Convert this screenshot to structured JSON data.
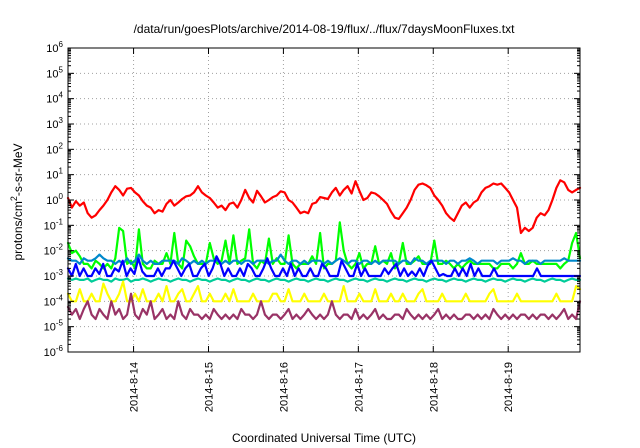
{
  "chart_data": {
    "type": "line",
    "title": "/data/run/goesPlots/archive/2014-08-19/flux/../flux/7daysMoonFluxes.txt",
    "xlabel": "Coordinated Universal Time (UTC)",
    "ylabel": "protons/cm^2-s-sr-MeV",
    "y_scale": "log",
    "ylim_exp": [
      -6,
      6
    ],
    "x_unit": "days",
    "xlim_days": [
      "2014-08-13 03:00",
      "2014-08-19 23:00"
    ],
    "x_ticks": [
      "2014-8-14",
      "2014-8-15",
      "2014-8-16",
      "2014-8-17",
      "2014-8-18",
      "2014-8-19"
    ],
    "grid": true,
    "series": [
      {
        "color": "#ff0000",
        "values": [
          1.2,
          0.5,
          0.9,
          0.6,
          0.8,
          0.3,
          0.2,
          0.25,
          0.4,
          0.6,
          1.0,
          2.0,
          3.5,
          2.5,
          1.5,
          2.8,
          3.0,
          2.0,
          1.5,
          0.9,
          0.6,
          0.5,
          0.3,
          0.4,
          0.35,
          0.7,
          1.0,
          0.6,
          0.8,
          1.1,
          1.4,
          1.5,
          2.0,
          3.5,
          2.0,
          1.5,
          1.2,
          0.8,
          0.5,
          0.6,
          0.4,
          0.7,
          0.8,
          0.5,
          1.0,
          2.5,
          1.2,
          0.8,
          2.3,
          1.4,
          0.8,
          1.0,
          1.3,
          1.5,
          2.2,
          2.0,
          1.0,
          0.8,
          0.5,
          0.3,
          0.35,
          0.3,
          0.7,
          0.8,
          1.3,
          1.2,
          1.1,
          2.0,
          3.0,
          1.5,
          2.5,
          3.5,
          1.8,
          5.5,
          2.3,
          1.0,
          1.2,
          2.0,
          1.8,
          1.4,
          1.0,
          0.7,
          0.35,
          0.2,
          0.18,
          0.3,
          0.5,
          1.0,
          2.5,
          4.0,
          4.5,
          3.8,
          3.0,
          1.5,
          1.0,
          0.6,
          0.3,
          0.2,
          0.15,
          0.3,
          0.6,
          0.8,
          0.5,
          0.8,
          1.0,
          2.0,
          3.0,
          3.5,
          4.5,
          4.0,
          4.5,
          3.0,
          2.0,
          1.0,
          0.5,
          0.05,
          0.08,
          0.06,
          0.08,
          0.2,
          0.3,
          0.25,
          0.4,
          1.0,
          3.0,
          6.0,
          5.0,
          2.5,
          2.0,
          2.5,
          3.0
        ]
      },
      {
        "color": "#00ff00",
        "values": [
          0.02,
          0.008,
          0.01,
          0.006,
          0.003,
          0.003,
          0.002,
          0.004,
          0.003,
          0.002,
          0.003,
          0.002,
          0.005,
          0.08,
          0.06,
          0.003,
          0.004,
          0.002,
          0.07,
          0.003,
          0.002,
          0.002,
          0.004,
          0.003,
          0.003,
          0.008,
          0.003,
          0.05,
          0.003,
          0.002,
          0.025,
          0.015,
          0.006,
          0.003,
          0.003,
          0.003,
          0.02,
          0.005,
          0.003,
          0.004,
          0.025,
          0.003,
          0.04,
          0.003,
          0.004,
          0.005,
          0.07,
          0.003,
          0.002,
          0.004,
          0.003,
          0.03,
          0.003,
          0.005,
          0.003,
          0.003,
          0.04,
          0.003,
          0.002,
          0.003,
          0.003,
          0.003,
          0.006,
          0.003,
          0.05,
          0.002,
          0.003,
          0.003,
          0.004,
          0.13,
          0.01,
          0.003,
          0.002,
          0.003,
          0.008,
          0.002,
          0.003,
          0.003,
          0.015,
          0.003,
          0.004,
          0.003,
          0.008,
          0.002,
          0.003,
          0.02,
          0.003,
          0.003,
          0.004,
          0.006,
          0.003,
          0.003,
          0.003,
          0.025,
          0.003,
          0.003,
          0.004,
          0.003,
          0.002,
          0.003,
          0.002,
          0.003,
          0.004,
          0.003,
          0.003,
          0.003,
          0.003,
          0.003,
          0.002,
          0.002,
          0.003,
          0.003,
          0.003,
          0.002,
          0.003,
          0.008,
          0.003,
          0.003,
          0.004,
          0.003,
          0.003,
          0.003,
          0.003,
          0.003,
          0.003,
          0.002,
          0.003,
          0.004,
          0.02,
          0.05,
          0.005
        ]
      },
      {
        "color": "#0088cc",
        "values": [
          0.005,
          0.004,
          0.004,
          0.003,
          0.005,
          0.004,
          0.004,
          0.005,
          0.007,
          0.005,
          0.004,
          0.004,
          0.003,
          0.004,
          0.003,
          0.005,
          0.003,
          0.004,
          0.007,
          0.004,
          0.003,
          0.004,
          0.003,
          0.003,
          0.004,
          0.004,
          0.004,
          0.004,
          0.003,
          0.005,
          0.004,
          0.003,
          0.004,
          0.003,
          0.004,
          0.003,
          0.004,
          0.004,
          0.004,
          0.003,
          0.004,
          0.003,
          0.004,
          0.004,
          0.003,
          0.004,
          0.004,
          0.003,
          0.004,
          0.004,
          0.004,
          0.003,
          0.004,
          0.004,
          0.007,
          0.004,
          0.003,
          0.004,
          0.004,
          0.003,
          0.004,
          0.003,
          0.004,
          0.004,
          0.004,
          0.003,
          0.004,
          0.003,
          0.004,
          0.005,
          0.004,
          0.003,
          0.004,
          0.004,
          0.003,
          0.004,
          0.004,
          0.003,
          0.004,
          0.003,
          0.004,
          0.004,
          0.004,
          0.004,
          0.003,
          0.004,
          0.004,
          0.003,
          0.005,
          0.004,
          0.004,
          0.003,
          0.004,
          0.004,
          0.004,
          0.004,
          0.003,
          0.004,
          0.004,
          0.003,
          0.004,
          0.004,
          0.005,
          0.004,
          0.003,
          0.004,
          0.004,
          0.004,
          0.004,
          0.003,
          0.004,
          0.004,
          0.004,
          0.005,
          0.004,
          0.004,
          0.003,
          0.004,
          0.004,
          0.004,
          0.003,
          0.004,
          0.004,
          0.004,
          0.004,
          0.004,
          0.005,
          0.004,
          0.004,
          0.004,
          0.004
        ]
      },
      {
        "color": "#0000ff",
        "values": [
          0.002,
          0.001,
          0.003,
          0.001,
          0.002,
          0.001,
          0.001,
          0.002,
          0.0012,
          0.003,
          0.001,
          0.001,
          0.002,
          0.0015,
          0.004,
          0.001,
          0.002,
          0.0012,
          0.005,
          0.0015,
          0.001,
          0.001,
          0.001,
          0.002,
          0.001,
          0.002,
          0.002,
          0.004,
          0.002,
          0.001,
          0.002,
          0.003,
          0.001,
          0.001,
          0.002,
          0.003,
          0.001,
          0.002,
          0.006,
          0.003,
          0.001,
          0.002,
          0.001,
          0.001,
          0.002,
          0.001,
          0.003,
          0.002,
          0.001,
          0.001,
          0.002,
          0.005,
          0.002,
          0.001,
          0.001,
          0.002,
          0.001,
          0.003,
          0.001,
          0.002,
          0.001,
          0.001,
          0.002,
          0.001,
          0.001,
          0.003,
          0.002,
          0.001,
          0.001,
          0.001,
          0.004,
          0.002,
          0.001,
          0.001,
          0.003,
          0.001,
          0.002,
          0.001,
          0.001,
          0.001,
          0.001,
          0.002,
          0.0012,
          0.002,
          0.003,
          0.001,
          0.002,
          0.001,
          0.0015,
          0.001,
          0.002,
          0.001,
          0.0025,
          0.004,
          0.002,
          0.001,
          0.0012,
          0.001,
          0.001,
          0.002,
          0.001,
          0.002,
          0.001,
          0.003,
          0.001,
          0.002,
          0.001,
          0.001,
          0.001,
          0.002,
          0.001,
          0.001,
          0.001,
          0.001,
          0.001,
          0.001,
          0.001,
          0.001,
          0.001,
          0.001,
          0.002,
          0.001,
          0.001,
          0.001,
          0.001,
          0.001,
          0.001,
          0.001,
          0.001,
          0.001,
          0.001,
          0.001
        ]
      },
      {
        "color": "#00cc99",
        "values": [
          0.0008,
          0.0007,
          0.0008,
          0.0007,
          0.0007,
          0.0008,
          0.0006,
          0.0007,
          0.0008,
          0.0007,
          0.0007,
          0.0006,
          0.0008,
          0.0007,
          0.0007,
          0.0008,
          0.0006,
          0.0007,
          0.0007,
          0.0008,
          0.0007,
          0.0006,
          0.0007,
          0.0008,
          0.0007,
          0.0007,
          0.0006,
          0.0007,
          0.0008,
          0.0007,
          0.0007,
          0.0006,
          0.0007,
          0.0008,
          0.0007,
          0.0007,
          0.0006,
          0.0007,
          0.0008,
          0.0007,
          0.0007,
          0.0006,
          0.0007,
          0.0008,
          0.0007,
          0.0007,
          0.0006,
          0.0007,
          0.0008,
          0.0007,
          0.0007,
          0.0006,
          0.0007,
          0.0008,
          0.0007,
          0.0007,
          0.0006,
          0.0007,
          0.0008,
          0.0007,
          0.0007,
          0.0006,
          0.0007,
          0.0008,
          0.0007,
          0.0007,
          0.0006,
          0.0007,
          0.0008,
          0.0007,
          0.0007,
          0.0006,
          0.0007,
          0.0008,
          0.0007,
          0.0007,
          0.0006,
          0.0007,
          0.0008,
          0.0007,
          0.0007,
          0.0006,
          0.0007,
          0.0008,
          0.0007,
          0.0007,
          0.0006,
          0.0007,
          0.0008,
          0.0007,
          0.0007,
          0.0006,
          0.0007,
          0.0008,
          0.0007,
          0.0007,
          0.0006,
          0.0007,
          0.0008,
          0.0007,
          0.0007,
          0.0006,
          0.0007,
          0.0008,
          0.0007,
          0.0007,
          0.0006,
          0.0007,
          0.0008,
          0.0007,
          0.0007,
          0.0006,
          0.0007,
          0.0008,
          0.0007,
          0.0007,
          0.0006,
          0.0007,
          0.0008,
          0.0007,
          0.0007,
          0.0006,
          0.0007,
          0.0008,
          0.0007,
          0.0007,
          0.0006,
          0.0007,
          0.0008,
          0.0007,
          0.0007
        ]
      },
      {
        "color": "#ffff00",
        "values": [
          0.0002,
          0.0001,
          0.0001,
          0.0003,
          0.0001,
          0.0001,
          0.0002,
          0.0001,
          0.0001,
          0.0005,
          0.0002,
          0.0001,
          0.0001,
          0.0002,
          0.0006,
          0.0001,
          0.0001,
          0.0002,
          0.0001,
          0.0003,
          0.0001,
          0.0001,
          0.0001,
          0.0002,
          0.0001,
          0.0004,
          0.0001,
          0.0001,
          0.0002,
          0.0003,
          0.0001,
          0.0001,
          0.0002,
          0.0004,
          0.0001,
          0.0001,
          0.0002,
          0.0001,
          0.0001,
          0.0001,
          0.0002,
          0.0001,
          0.0003,
          0.0001,
          0.0001,
          0.0001,
          0.0001,
          0.0002,
          0.0001,
          0.0001,
          0.0001,
          0.0001,
          0.0002,
          0.0002,
          0.0001,
          0.0001,
          0.0003,
          0.0001,
          0.0001,
          0.0001,
          0.0002,
          0.0001,
          0.0001,
          0.0001,
          0.0001,
          0.0002,
          0.0001,
          0.0001,
          0.0001,
          0.0001,
          0.0004,
          0.0001,
          0.0001,
          0.0001,
          0.0002,
          0.0001,
          0.0001,
          0.0001,
          0.0003,
          0.0001,
          0.0001,
          0.0001,
          0.0002,
          0.0001,
          0.0001,
          0.0002,
          0.0001,
          0.0001,
          0.0001,
          0.0002,
          0.0003,
          0.0001,
          0.0001,
          0.0001,
          0.0001,
          0.0002,
          0.0001,
          0.0001,
          0.0001,
          0.0001,
          0.0001,
          0.0002,
          0.0001,
          0.0001,
          0.0001,
          0.0001,
          0.0001,
          0.0002,
          0.0003,
          0.0001,
          0.0001,
          0.0001,
          0.0001,
          0.0001,
          0.0002,
          0.0001,
          0.0001,
          0.0001,
          0.0001,
          0.0001,
          0.0001,
          0.0001,
          0.0001,
          0.0001,
          0.0002,
          0.0001,
          0.0001,
          0.0001,
          0.0001,
          0.0004,
          0.0003
        ]
      },
      {
        "color": "#993366",
        "values": [
          6e-05,
          3e-05,
          5e-05,
          2e-05,
          5e-05,
          0.0001,
          3e-05,
          2e-05,
          5e-05,
          3e-05,
          2e-05,
          0.0001,
          3e-05,
          5e-05,
          2e-05,
          3e-05,
          0.0002,
          3e-05,
          2e-05,
          5e-05,
          3e-05,
          0.0001,
          2e-05,
          3e-05,
          5e-05,
          2e-05,
          3e-05,
          2e-05,
          0.0001,
          3e-05,
          2e-05,
          5e-05,
          3e-05,
          3e-05,
          2e-05,
          3e-05,
          2e-05,
          5e-05,
          3e-05,
          2e-05,
          3e-05,
          2e-05,
          3e-05,
          2e-05,
          5e-05,
          3e-05,
          3e-05,
          2e-05,
          3e-05,
          0.0001,
          3e-05,
          2e-05,
          3e-05,
          3e-05,
          2e-05,
          3e-05,
          5e-05,
          2e-05,
          3e-05,
          2e-05,
          3e-05,
          5e-05,
          3e-05,
          2e-05,
          3e-05,
          2e-05,
          3e-05,
          0.0001,
          3e-05,
          2e-05,
          3e-05,
          3e-05,
          2e-05,
          5e-05,
          2e-05,
          3e-05,
          2e-05,
          3e-05,
          5e-05,
          2e-05,
          3e-05,
          2e-05,
          2e-05,
          3e-05,
          3e-05,
          2e-05,
          5e-05,
          3e-05,
          2e-05,
          3e-05,
          2e-05,
          3e-05,
          2e-05,
          3e-05,
          5e-05,
          2e-05,
          3e-05,
          2e-05,
          3e-05,
          2e-05,
          2e-05,
          3e-05,
          3e-05,
          2e-05,
          3e-05,
          2e-05,
          3e-05,
          2e-05,
          5e-05,
          3e-05,
          2e-05,
          3e-05,
          2e-05,
          3e-05,
          2e-05,
          3e-05,
          3e-05,
          2e-05,
          3e-05,
          2e-05,
          3e-05,
          3e-05,
          2e-05,
          3e-05,
          2e-05,
          3e-05,
          5e-05,
          2e-05,
          3e-05,
          2e-05,
          0.0001
        ]
      }
    ]
  }
}
